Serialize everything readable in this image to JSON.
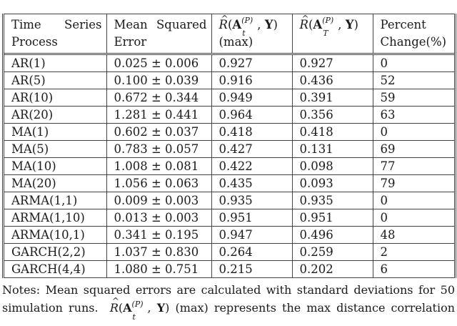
{
  "table": {
    "headers": [
      {
        "line1_left": "Time",
        "line1_right": "Series",
        "line2": "Process"
      },
      {
        "line1_left": "Mean",
        "line1_right": "Squared",
        "line2": "Error"
      },
      {
        "symbol": "R",
        "matrix": "A",
        "subscript": "t",
        "superscript": "(P)",
        "target": "Y",
        "line2": "(max)"
      },
      {
        "symbol": "R",
        "matrix": "A",
        "subscript": "T",
        "superscript": "(P)",
        "target": "Y"
      },
      {
        "line1": "Percent",
        "line2": "Change(%)"
      }
    ],
    "rows": [
      {
        "process": "AR(1)",
        "mse": "0.025 ± 0.006",
        "r_max": "0.927",
        "r_T": "0.927",
        "pct_change": "0"
      },
      {
        "process": "AR(5)",
        "mse": "0.100 ± 0.039",
        "r_max": "0.916",
        "r_T": "0.436",
        "pct_change": "52"
      },
      {
        "process": "AR(10)",
        "mse": "0.672 ± 0.344",
        "r_max": "0.949",
        "r_T": "0.391",
        "pct_change": "59"
      },
      {
        "process": "AR(20)",
        "mse": "1.281 ± 0.441",
        "r_max": "0.964",
        "r_T": "0.356",
        "pct_change": "63"
      },
      {
        "process": "MA(1)",
        "mse": "0.602 ± 0.037",
        "r_max": "0.418",
        "r_T": "0.418",
        "pct_change": "0"
      },
      {
        "process": "MA(5)",
        "mse": "0.783 ± 0.057",
        "r_max": "0.427",
        "r_T": "0.131",
        "pct_change": "69"
      },
      {
        "process": "MA(10)",
        "mse": "1.008 ± 0.081",
        "r_max": "0.422",
        "r_T": "0.098",
        "pct_change": "77"
      },
      {
        "process": "MA(20)",
        "mse": "1.056 ± 0.063",
        "r_max": "0.435",
        "r_T": "0.093",
        "pct_change": "79"
      },
      {
        "process": "ARMA(1,1)",
        "mse": "0.009 ± 0.003",
        "r_max": "0.935",
        "r_T": "0.935",
        "pct_change": "0"
      },
      {
        "process": "ARMA(1,10)",
        "mse": "0.013 ± 0.003",
        "r_max": "0.951",
        "r_T": "0.951",
        "pct_change": "0"
      },
      {
        "process": "ARMA(10,1)",
        "mse": "0.341 ± 0.195",
        "r_max": "0.947",
        "r_T": "0.496",
        "pct_change": "48"
      },
      {
        "process": "GARCH(2,2)",
        "mse": "1.037 ± 0.830",
        "r_max": "0.264",
        "r_T": "0.259",
        "pct_change": "2"
      },
      {
        "process": "GARCH(4,4)",
        "mse": "1.080 ± 0.751",
        "r_max": "0.215",
        "r_T": "0.202",
        "pct_change": "6"
      }
    ]
  },
  "notes": {
    "line1": "Notes: Mean squared errors are calculated with standard deviations for 50",
    "line2_prefix": "simulation runs.",
    "line2_suffix": "(max) represents the max distance correlation"
  }
}
